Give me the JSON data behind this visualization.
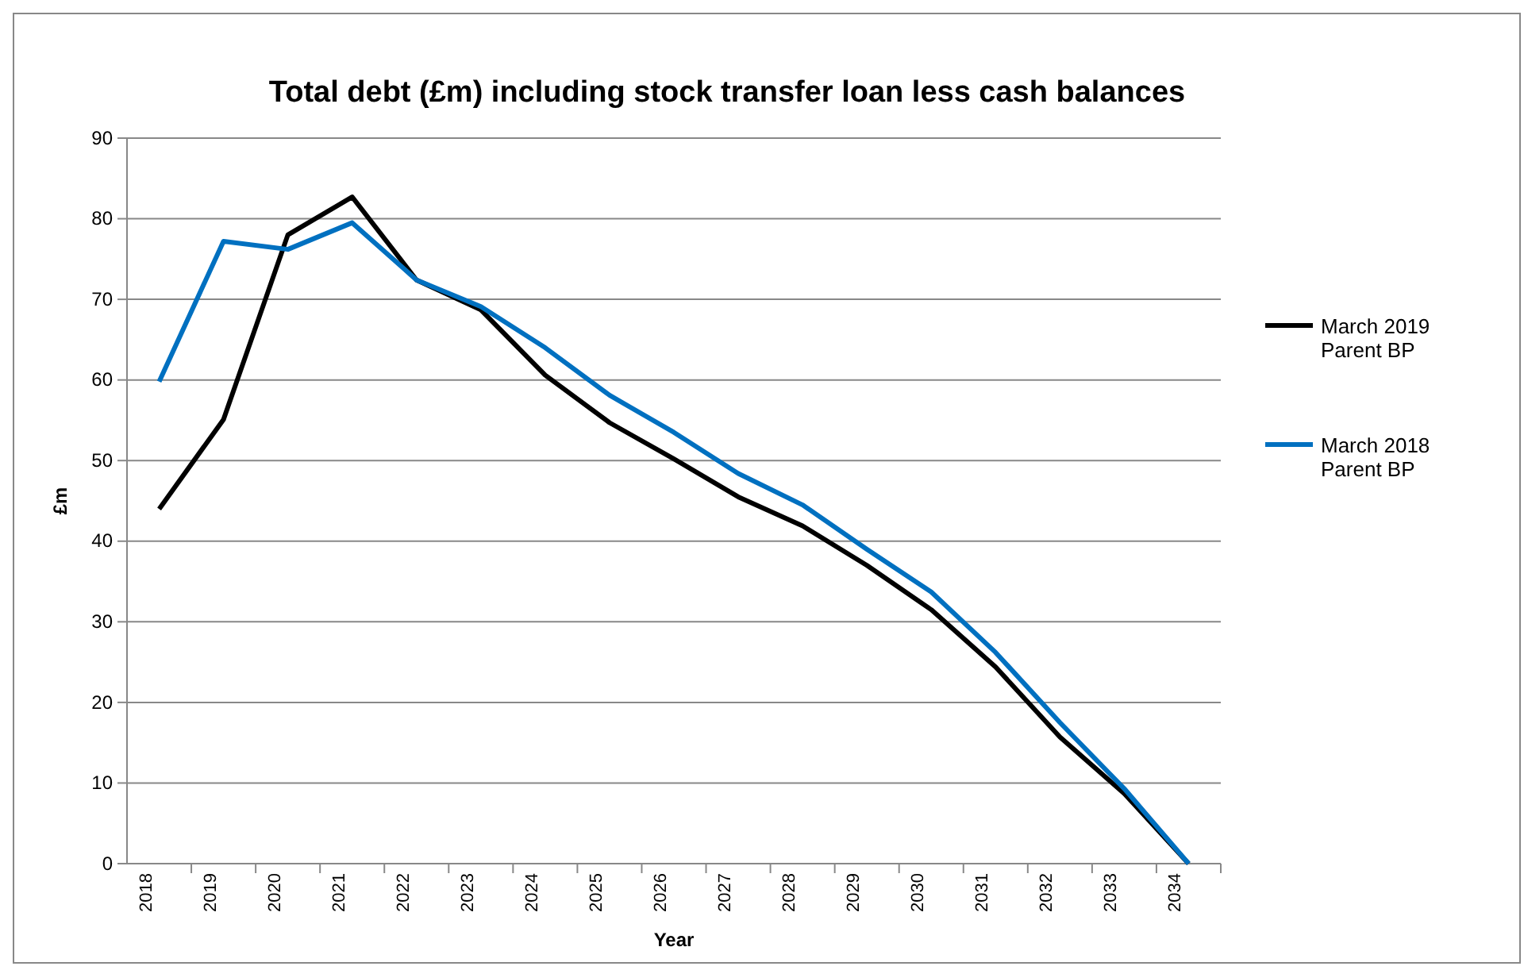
{
  "chart_data": {
    "type": "line",
    "title": "Total debt (£m) including stock transfer loan less cash balances",
    "xlabel": "Year",
    "ylabel": "£m",
    "categories": [
      "2018",
      "2019",
      "2020",
      "2021",
      "2022",
      "2023",
      "2024",
      "2025",
      "2026",
      "2027",
      "2028",
      "2029",
      "2030",
      "2031",
      "2032",
      "2033",
      "2034"
    ],
    "series": [
      {
        "name": "March 2019 Parent BP",
        "color": "#000000",
        "values": [
          44,
          55.1,
          78,
          82.7,
          72.4,
          68.7,
          60.6,
          54.7,
          50.2,
          45.5,
          41.9,
          37,
          31.5,
          24.4,
          15.7,
          8.7,
          0
        ]
      },
      {
        "name": "March 2018 Parent BP",
        "color": "#0070c0",
        "values": [
          59.8,
          77.2,
          76.2,
          79.5,
          72.4,
          69.1,
          64,
          58.1,
          53.5,
          48.4,
          44.5,
          39,
          33.7,
          26.2,
          17.5,
          9.3,
          0
        ]
      }
    ],
    "ylim": [
      0,
      90
    ],
    "yticks": [
      0,
      10,
      20,
      30,
      40,
      50,
      60,
      70,
      80,
      90
    ],
    "grid": "y",
    "legend": "right",
    "marker": "none",
    "line_style": "solid"
  }
}
